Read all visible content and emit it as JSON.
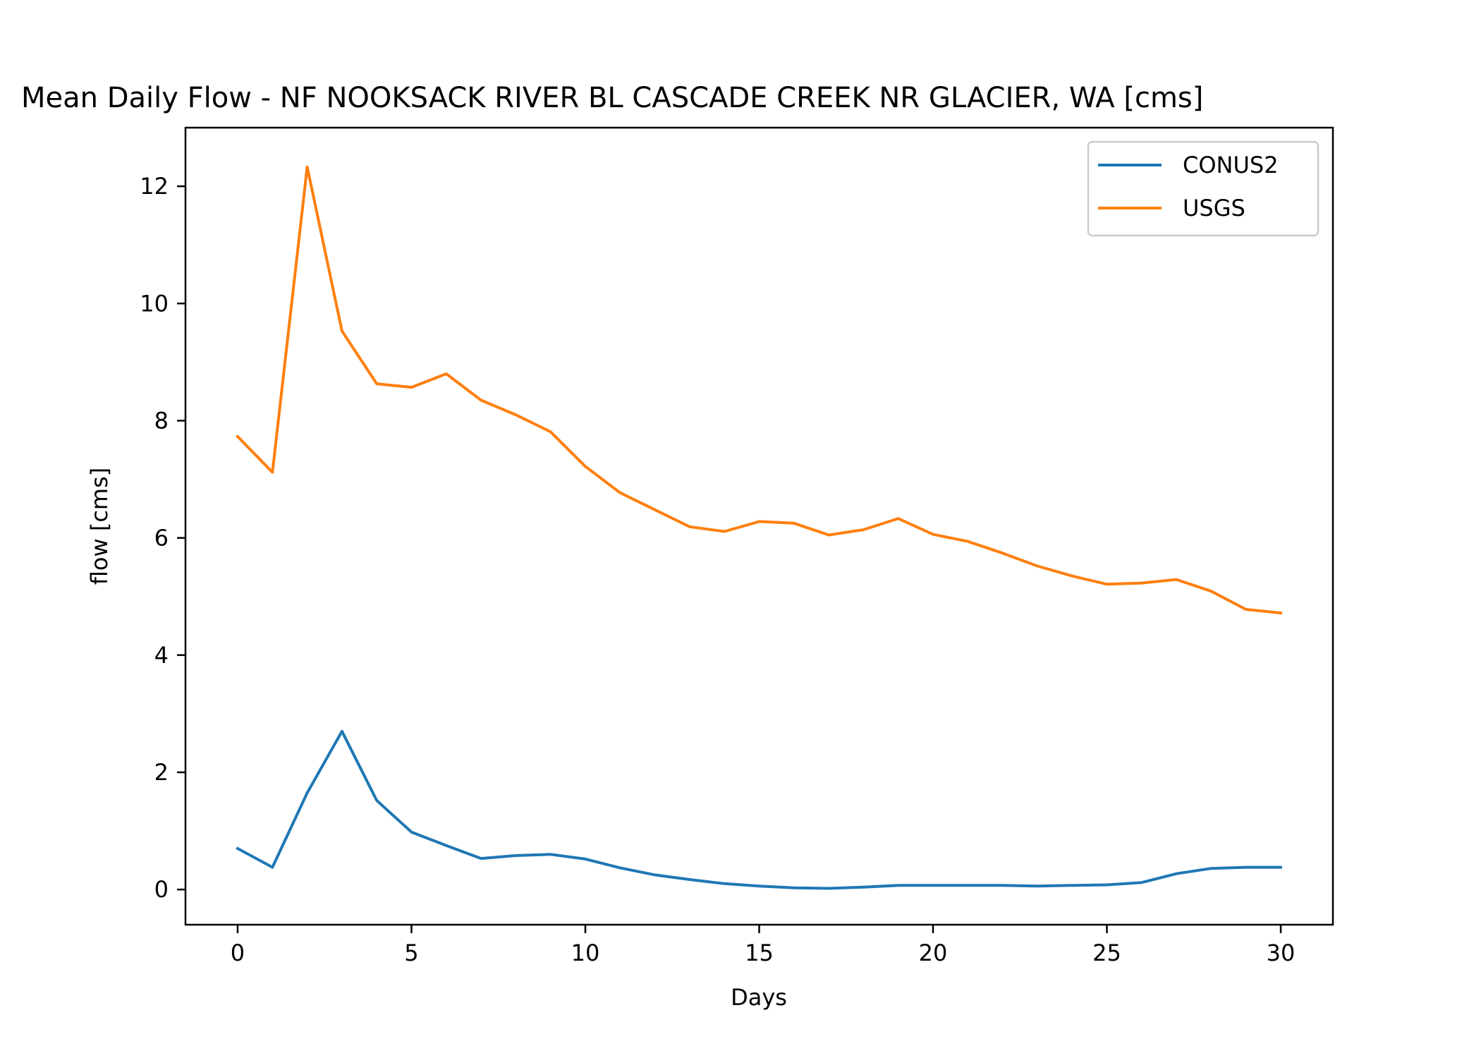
{
  "chart_data": {
    "type": "line",
    "title": "Mean Daily Flow - NF NOOKSACK RIVER BL CASCADE CREEK NR GLACIER, WA [cms]",
    "xlabel": "Days",
    "ylabel": "flow [cms]",
    "xlim": [
      -1.5,
      31.5
    ],
    "ylim": [
      -0.6,
      13.0
    ],
    "xticks": [
      0,
      5,
      10,
      15,
      20,
      25,
      30
    ],
    "yticks": [
      0,
      2,
      4,
      6,
      8,
      10,
      12
    ],
    "grid": false,
    "legend_position": "top-right",
    "x": [
      0,
      1,
      2,
      3,
      4,
      5,
      6,
      7,
      8,
      9,
      10,
      11,
      12,
      13,
      14,
      15,
      16,
      17,
      18,
      19,
      20,
      21,
      22,
      23,
      24,
      25,
      26,
      27,
      28,
      29,
      30
    ],
    "series": [
      {
        "name": "CONUS2",
        "color": "#1f77b4",
        "values": [
          0.7,
          0.38,
          1.65,
          2.7,
          1.52,
          0.98,
          0.75,
          0.53,
          0.58,
          0.6,
          0.52,
          0.37,
          0.25,
          0.17,
          0.1,
          0.06,
          0.03,
          0.02,
          0.04,
          0.07,
          0.07,
          0.07,
          0.07,
          0.06,
          0.07,
          0.08,
          0.12,
          0.27,
          0.36,
          0.38,
          0.38
        ]
      },
      {
        "name": "USGS",
        "color": "#ff7f0e",
        "values": [
          7.73,
          7.12,
          12.33,
          9.53,
          8.63,
          8.57,
          8.8,
          8.35,
          8.1,
          7.81,
          7.22,
          6.77,
          6.48,
          6.19,
          6.11,
          6.28,
          6.25,
          6.05,
          6.14,
          6.33,
          6.06,
          5.94,
          5.74,
          5.52,
          5.35,
          5.21,
          5.23,
          5.29,
          5.09,
          4.78,
          4.72
        ]
      }
    ]
  }
}
